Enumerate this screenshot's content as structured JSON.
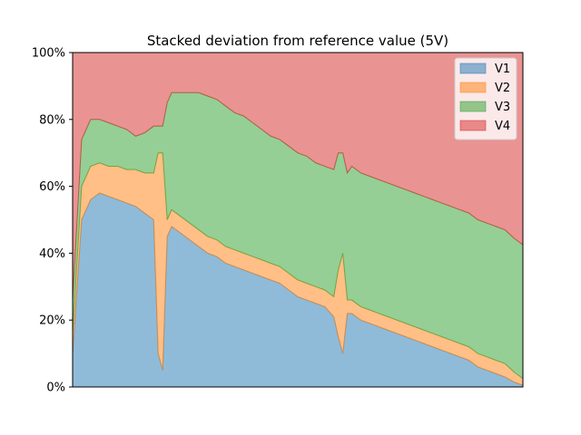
{
  "chart_data": {
    "type": "area",
    "stacked": true,
    "title": "Stacked deviation from reference value (5V)",
    "xlabel": "",
    "ylabel": "",
    "x_ticks_shown": false,
    "ylim": [
      0,
      1
    ],
    "y_ticks": [
      {
        "value": 0.0,
        "label": "0%"
      },
      {
        "value": 0.2,
        "label": "20%"
      },
      {
        "value": 0.4,
        "label": "40%"
      },
      {
        "value": 0.6,
        "label": "60%"
      },
      {
        "value": 0.8,
        "label": "80%"
      },
      {
        "value": 1.0,
        "label": "100%"
      }
    ],
    "grid": false,
    "legend_position": "top-right",
    "x": [
      0,
      0.02,
      0.04,
      0.06,
      0.08,
      0.1,
      0.12,
      0.14,
      0.16,
      0.18,
      0.19,
      0.2,
      0.21,
      0.22,
      0.24,
      0.26,
      0.28,
      0.3,
      0.32,
      0.34,
      0.36,
      0.38,
      0.4,
      0.42,
      0.44,
      0.46,
      0.48,
      0.5,
      0.52,
      0.54,
      0.56,
      0.58,
      0.59,
      0.6,
      0.61,
      0.62,
      0.64,
      0.66,
      0.68,
      0.7,
      0.72,
      0.74,
      0.76,
      0.78,
      0.8,
      0.82,
      0.84,
      0.86,
      0.88,
      0.9,
      0.92,
      0.94,
      0.96,
      0.98,
      1.0
    ],
    "series": [
      {
        "name": "V1",
        "color": "#1f77b4",
        "values": [
          0.1,
          0.5,
          0.56,
          0.58,
          0.57,
          0.56,
          0.55,
          0.54,
          0.52,
          0.5,
          0.1,
          0.05,
          0.45,
          0.48,
          0.46,
          0.44,
          0.42,
          0.4,
          0.39,
          0.37,
          0.36,
          0.35,
          0.34,
          0.33,
          0.32,
          0.31,
          0.29,
          0.27,
          0.26,
          0.25,
          0.24,
          0.21,
          0.15,
          0.1,
          0.22,
          0.22,
          0.2,
          0.19,
          0.18,
          0.17,
          0.16,
          0.15,
          0.14,
          0.13,
          0.12,
          0.11,
          0.1,
          0.09,
          0.08,
          0.06,
          0.05,
          0.04,
          0.03,
          0.015,
          0.005
        ]
      },
      {
        "name": "V2",
        "color": "#ff7f0e",
        "values": [
          0.06,
          0.1,
          0.1,
          0.09,
          0.09,
          0.1,
          0.1,
          0.11,
          0.12,
          0.14,
          0.6,
          0.65,
          0.05,
          0.05,
          0.05,
          0.05,
          0.05,
          0.05,
          0.05,
          0.05,
          0.05,
          0.05,
          0.05,
          0.05,
          0.05,
          0.05,
          0.05,
          0.05,
          0.05,
          0.05,
          0.05,
          0.06,
          0.2,
          0.3,
          0.04,
          0.04,
          0.04,
          0.04,
          0.04,
          0.04,
          0.04,
          0.04,
          0.04,
          0.04,
          0.04,
          0.04,
          0.04,
          0.04,
          0.04,
          0.04,
          0.04,
          0.04,
          0.04,
          0.03,
          0.02
        ]
      },
      {
        "name": "V3",
        "color": "#2ca02c",
        "values": [
          0.1,
          0.14,
          0.14,
          0.13,
          0.13,
          0.12,
          0.12,
          0.1,
          0.12,
          0.14,
          0.08,
          0.08,
          0.35,
          0.35,
          0.37,
          0.39,
          0.41,
          0.42,
          0.42,
          0.42,
          0.41,
          0.41,
          0.4,
          0.39,
          0.38,
          0.38,
          0.38,
          0.38,
          0.38,
          0.37,
          0.37,
          0.38,
          0.35,
          0.3,
          0.38,
          0.4,
          0.4,
          0.4,
          0.4,
          0.4,
          0.4,
          0.4,
          0.4,
          0.4,
          0.4,
          0.4,
          0.4,
          0.4,
          0.4,
          0.4,
          0.4,
          0.4,
          0.4,
          0.4,
          0.4
        ]
      },
      {
        "name": "V4",
        "color": "#d62728",
        "values": [
          0.74,
          0.26,
          0.2,
          0.2,
          0.21,
          0.22,
          0.23,
          0.25,
          0.24,
          0.22,
          0.22,
          0.22,
          0.15,
          0.12,
          0.12,
          0.12,
          0.12,
          0.13,
          0.14,
          0.16,
          0.18,
          0.19,
          0.21,
          0.23,
          0.25,
          0.26,
          0.28,
          0.3,
          0.31,
          0.33,
          0.34,
          0.35,
          0.3,
          0.3,
          0.36,
          0.34,
          0.36,
          0.37,
          0.38,
          0.39,
          0.4,
          0.41,
          0.42,
          0.43,
          0.44,
          0.45,
          0.46,
          0.47,
          0.48,
          0.5,
          0.51,
          0.52,
          0.53,
          0.555,
          0.575
        ]
      }
    ]
  }
}
